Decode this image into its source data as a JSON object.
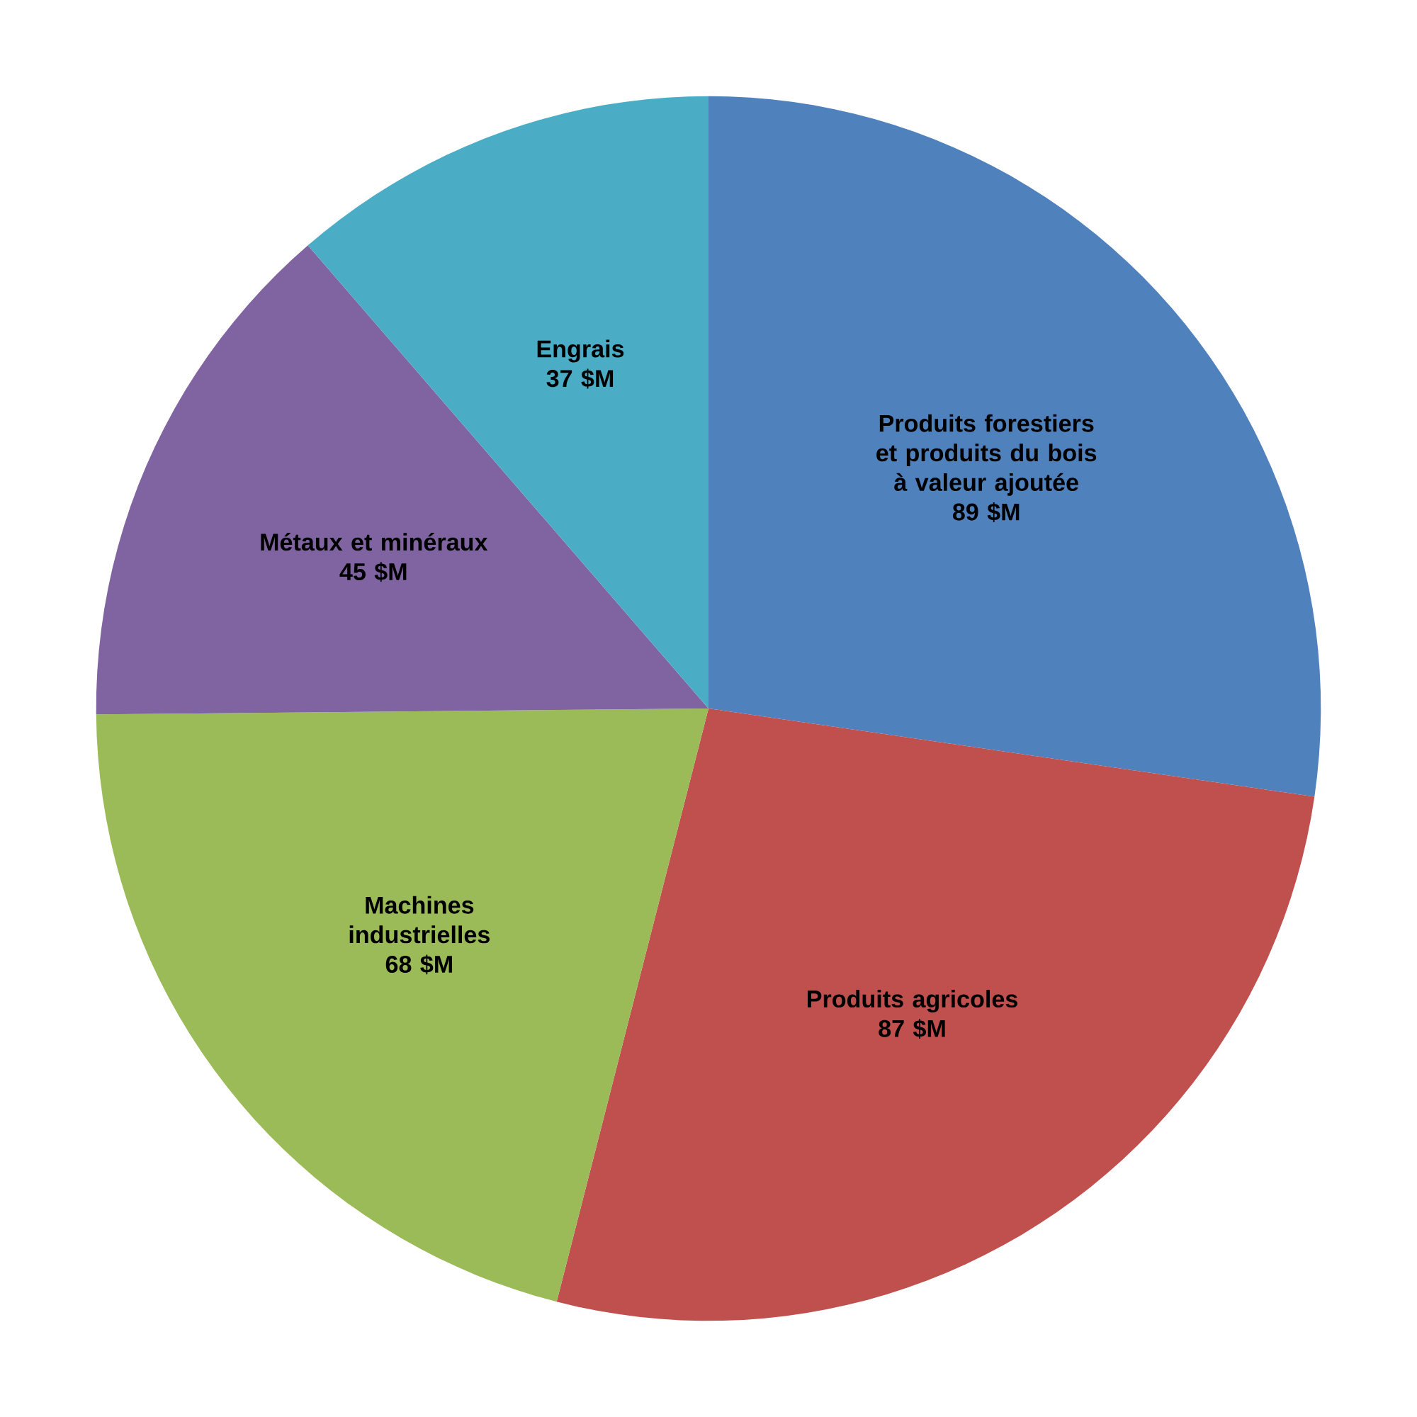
{
  "chart_data": {
    "type": "pie",
    "categories": [
      "Produits forestiers et produits du bois à valeur ajoutée",
      "Produits agricoles",
      "Machines industrielles",
      "Métaux et minéraux",
      "Engrais"
    ],
    "values": [
      89,
      87,
      68,
      45,
      37
    ],
    "value_labels": [
      "89 $M",
      "87 $M",
      "68 $M",
      "45 $M",
      "37 $M"
    ],
    "colors": [
      "#4f81bd",
      "#c0504d",
      "#9bbb59",
      "#8064a2",
      "#4bacc6"
    ]
  }
}
